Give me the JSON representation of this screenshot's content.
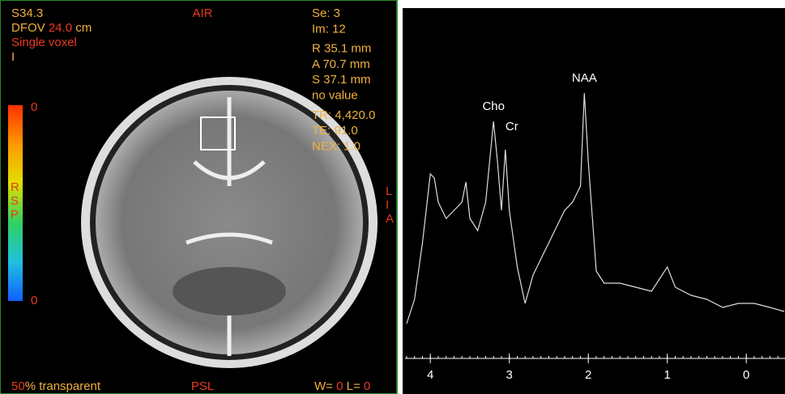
{
  "viewer": {
    "top_left": {
      "series": "S34.3",
      "dfov_label": "DFOV",
      "dfov_value": "24.0",
      "dfov_unit": "cm",
      "mode": "Single voxel",
      "orientation": "I"
    },
    "top_center": "AIR",
    "top_right": [
      "Se:  3",
      "Im:  12",
      "R  35.1 mm",
      "A  70.7 mm",
      "S  37.1 mm",
      "no value",
      "TR:  4,420.0",
      "TE:  91.0",
      "NEX:  1.0"
    ],
    "colorbar": {
      "max_label": "0",
      "min_label": "0"
    },
    "left_side": [
      "R",
      "S",
      "P"
    ],
    "right_side": [
      "L",
      "I",
      "A"
    ],
    "bottom": {
      "transparency_value": "50",
      "transparency_label": "% transparent",
      "center": "PSL",
      "w_label": "W=",
      "w_value": "0",
      "l_label": "L=",
      "l_value": "0"
    }
  },
  "spectrum": {
    "xlim": [
      4.32,
      -0.49
    ],
    "ylim": [
      0,
      430
    ],
    "xticks": [
      4,
      3,
      2,
      1,
      0
    ],
    "peaks": [
      {
        "label": "Cho",
        "x": 3.2
      },
      {
        "label": "Cr",
        "x": 3.05
      },
      {
        "label": "NAA",
        "x": 2.05
      }
    ],
    "trace": {
      "x": [
        4.3,
        4.2,
        4.1,
        4.0,
        3.95,
        3.9,
        3.8,
        3.7,
        3.6,
        3.55,
        3.5,
        3.4,
        3.3,
        3.2,
        3.15,
        3.1,
        3.05,
        3.0,
        2.9,
        2.8,
        2.7,
        2.6,
        2.5,
        2.4,
        2.3,
        2.2,
        2.1,
        2.05,
        2.0,
        1.9,
        1.8,
        1.6,
        1.4,
        1.2,
        1.0,
        0.9,
        0.7,
        0.5,
        0.3,
        0.1,
        -0.1,
        -0.3,
        -0.48
      ],
      "values": [
        43,
        73,
        143,
        228,
        223,
        193,
        173,
        183,
        193,
        218,
        173,
        158,
        193,
        293,
        243,
        183,
        258,
        183,
        113,
        68,
        103,
        123,
        143,
        163,
        183,
        193,
        213,
        328,
        243,
        108,
        93,
        93,
        88,
        83,
        113,
        88,
        78,
        73,
        63,
        68,
        68,
        63,
        58
      ]
    }
  }
}
